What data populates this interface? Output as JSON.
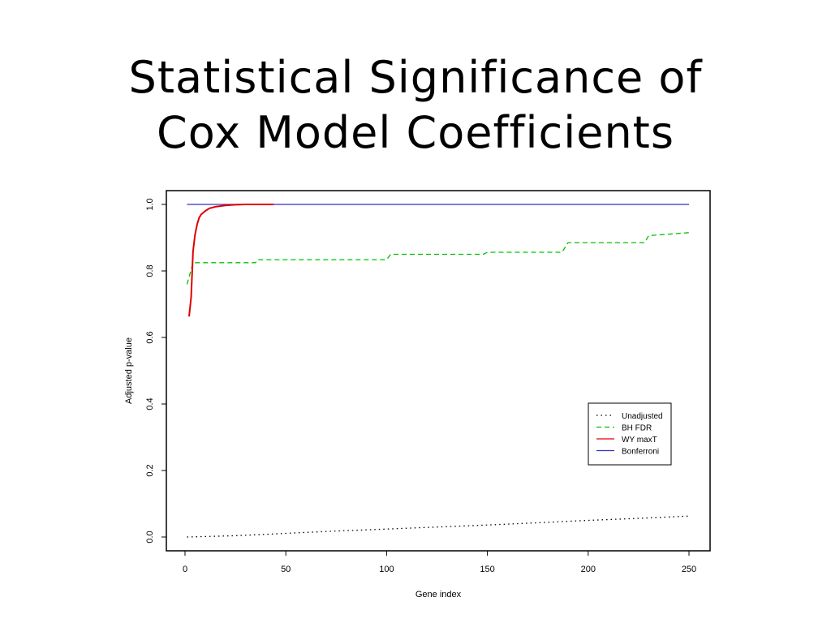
{
  "slide": {
    "title_line1": "Statistical Significance of",
    "title_line2": "Cox Model Coefficients"
  },
  "chart_data": {
    "type": "line",
    "xlabel": "Gene index",
    "ylabel": "Adjusted p-value",
    "xlim": [
      0,
      250
    ],
    "ylim": [
      0,
      1
    ],
    "xticks": [
      "0",
      "50",
      "100",
      "150",
      "200",
      "250"
    ],
    "yticks": [
      "0.0",
      "0.2",
      "0.4",
      "0.6",
      "0.8",
      "1.0"
    ],
    "grid": false,
    "legend_position": "right",
    "series": [
      {
        "name": "Unadjusted",
        "color": "#000000",
        "style": "dotted",
        "x": [
          1,
          25,
          50,
          75,
          100,
          125,
          150,
          175,
          200,
          225,
          250
        ],
        "y": [
          0.0,
          0.004,
          0.011,
          0.018,
          0.024,
          0.03,
          0.036,
          0.043,
          0.05,
          0.056,
          0.063
        ]
      },
      {
        "name": "BH FDR",
        "color": "#00c000",
        "style": "dashed",
        "x": [
          1,
          4,
          35,
          36,
          100,
          102,
          148,
          150,
          187,
          190,
          228,
          230,
          250
        ],
        "y": [
          0.76,
          0.825,
          0.825,
          0.834,
          0.834,
          0.85,
          0.85,
          0.856,
          0.856,
          0.885,
          0.885,
          0.906,
          0.915
        ]
      },
      {
        "name": "WY maxT",
        "color": "#e00000",
        "style": "solid",
        "x": [
          2,
          3,
          4,
          5,
          6,
          7,
          8,
          10,
          12,
          15,
          20,
          25,
          30,
          35,
          40,
          44
        ],
        "y": [
          0.663,
          0.72,
          0.86,
          0.91,
          0.94,
          0.96,
          0.97,
          0.98,
          0.988,
          0.993,
          0.997,
          0.999,
          1.0,
          1.0,
          1.0,
          1.0
        ]
      },
      {
        "name": "Bonferroni",
        "color": "#3030c0",
        "style": "solid",
        "x": [
          1,
          250
        ],
        "y": [
          1.0,
          1.0
        ]
      }
    ]
  }
}
